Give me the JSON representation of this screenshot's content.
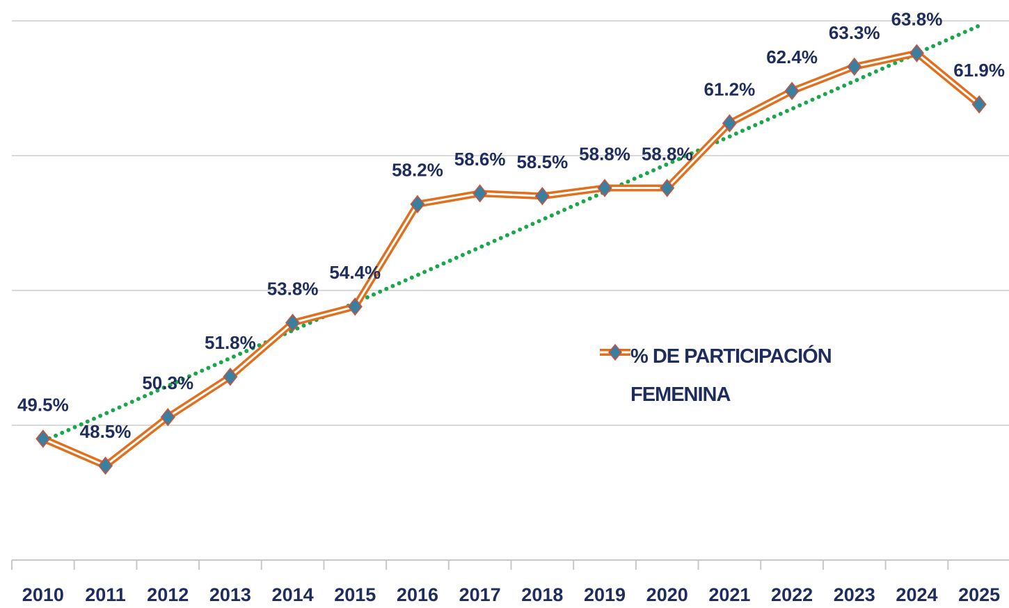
{
  "chart_data": {
    "type": "line",
    "categories": [
      "2010",
      "2011",
      "2012",
      "2013",
      "2014",
      "2015",
      "2016",
      "2017",
      "2018",
      "2019",
      "2020",
      "2021",
      "2022",
      "2023",
      "2024",
      "2025"
    ],
    "series": [
      {
        "name": "% DE PARTICIPACIÓN FEMENINA",
        "color": "#e0701e",
        "marker_color": "#3b7f9e",
        "values": [
          49.5,
          48.5,
          50.3,
          51.8,
          53.8,
          54.4,
          58.2,
          58.6,
          58.5,
          58.8,
          58.8,
          61.2,
          62.4,
          63.3,
          63.8,
          61.9
        ],
        "value_labels": [
          "49.5%",
          "48.5%",
          "50.3%",
          "51.8%",
          "53.8%",
          "54.4%",
          "58.2%",
          "58.6%",
          "58.5%",
          "58.8%",
          "58.8%",
          "61.2%",
          "62.4%",
          "63.3%",
          "63.8%",
          "61.9%"
        ]
      }
    ],
    "trendline": "linear",
    "trendline_color": "#1aa64a",
    "ylim": [
      45,
      65
    ],
    "yticks": [
      45,
      50,
      55,
      60,
      65
    ],
    "grid": true
  }
}
